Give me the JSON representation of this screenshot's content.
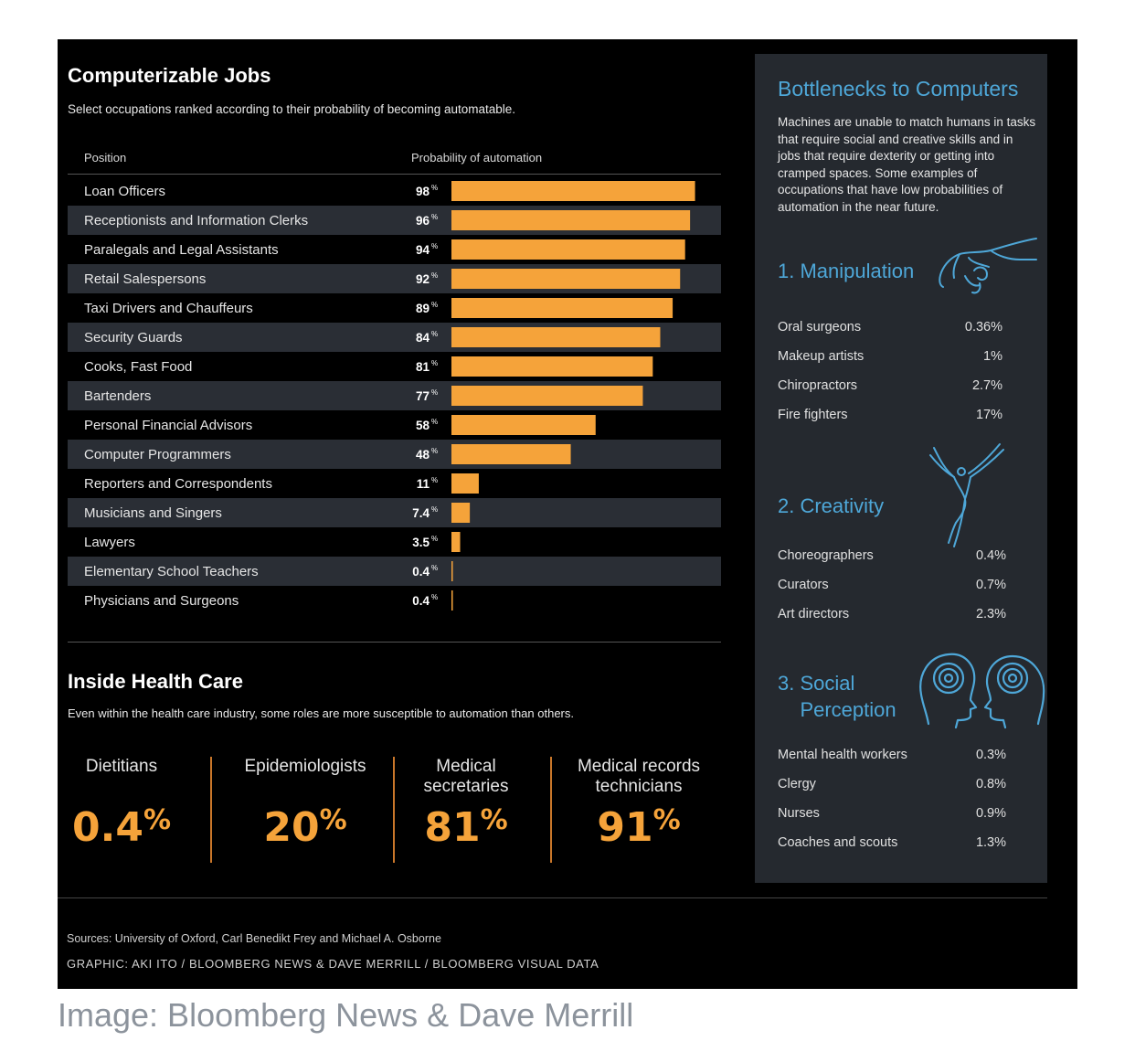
{
  "chart_data": {
    "type": "bar",
    "orientation": "horizontal",
    "title": "Computerizable Jobs",
    "subtitle": "Select occupations ranked according to their probability of becoming automatable.",
    "column_headers": [
      "Position",
      "Probability of automation"
    ],
    "unit": "%",
    "categories": [
      "Loan Officers",
      "Receptionists and Information Clerks",
      "Paralegals and Legal Assistants",
      "Retail Salespersons",
      "Taxi Drivers and Chauffeurs",
      "Security Guards",
      "Cooks, Fast Food",
      "Bartenders",
      "Personal Financial Advisors",
      "Computer Programmers",
      "Reporters and Correspondents",
      "Musicians and Singers",
      "Lawyers",
      "Elementary School Teachers",
      "Physicians and Surgeons"
    ],
    "values": [
      98,
      96,
      94,
      92,
      89,
      84,
      81,
      77,
      58,
      48,
      11,
      7.4,
      3.5,
      0.4,
      0.4
    ],
    "value_labels": [
      "98",
      "96",
      "94",
      "92",
      "89",
      "84",
      "81",
      "77",
      "58",
      "48",
      "11",
      "7.4",
      "3.5",
      "0.4",
      "0.4"
    ],
    "xlim": [
      0,
      100
    ],
    "bar_color": "#f5a33a"
  },
  "health": {
    "title": "Inside Health Care",
    "subtitle": "Even within the health care industry, some roles are more susceptible to automation than others.",
    "items": [
      {
        "label": "Dietitians",
        "value": "0.4",
        "unit": "%"
      },
      {
        "label": "Epidemiologists",
        "value": "20",
        "unit": "%"
      },
      {
        "label": "Medical\nsecretaries",
        "value": "81",
        "unit": "%"
      },
      {
        "label": "Medical records\ntechnicians",
        "value": "91",
        "unit": "%"
      }
    ]
  },
  "sidebar": {
    "title": "Bottlenecks to Computers",
    "intro": "Machines are unable to match humans in tasks that require social and creative skills and in jobs that require dexterity or getting into cramped spaces. Some examples of occupations that have low probabilities of automation in the near future.",
    "categories": [
      {
        "title": "1. Manipulation",
        "icon": "hand-icon",
        "items": [
          [
            "Oral surgeons",
            "0.36%"
          ],
          [
            "Makeup artists",
            "1%"
          ],
          [
            "Chiropractors",
            "2.7%"
          ],
          [
            "Fire fighters",
            "17%"
          ]
        ]
      },
      {
        "title": "2. Creativity",
        "icon": "dancer-icon",
        "items": [
          [
            "Choreographers",
            "0.4%"
          ],
          [
            "Curators",
            "0.7%"
          ],
          [
            "Art directors",
            "2.3%"
          ]
        ]
      },
      {
        "title": "3. Social\n    Perception",
        "icon": "heads-icon",
        "items": [
          [
            "Mental health workers",
            "0.3%"
          ],
          [
            "Clergy",
            "0.8%"
          ],
          [
            "Nurses",
            "0.9%"
          ],
          [
            "Coaches and scouts",
            "1.3%"
          ]
        ]
      }
    ],
    "accent_color": "#4ea7d8"
  },
  "footer": {
    "sources": "Sources: University of Oxford, Carl Benedikt Frey and Michael A. Osborne",
    "graphic": "GRAPHIC: AKI ITO / BLOOMBERG NEWS & DAVE MERRILL / BLOOMBERG VISUAL DATA"
  },
  "caption": "Image: Bloomberg News & Dave Merrill"
}
